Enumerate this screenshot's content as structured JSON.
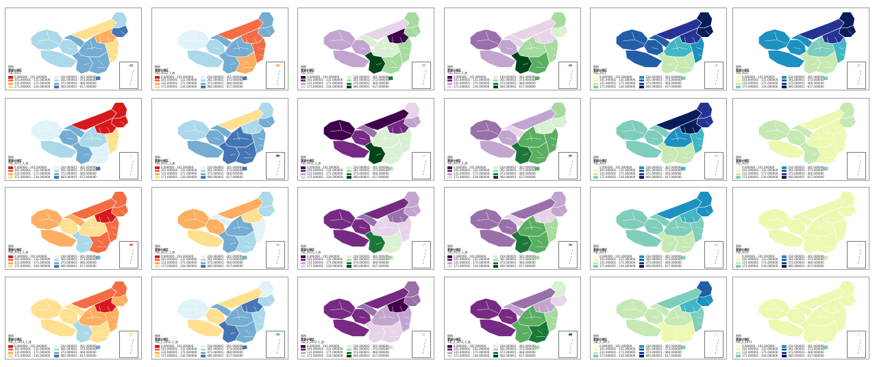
{
  "legend_heading": "图例",
  "legend_title": "客服分调区",
  "palettes": {
    "rdylbu": [
      "#d7191c",
      "#f46d43",
      "#fdae61",
      "#fee090",
      "#e0f3f8",
      "#abd9e9",
      "#74add1",
      "#4575b4"
    ],
    "prgn": [
      "#40004b",
      "#762a83",
      "#9970ab",
      "#c2a5cf",
      "#e7d4e8",
      "#d9f0d3",
      "#a6dba0",
      "#5aae61",
      "#1b7837",
      "#00441b"
    ],
    "ylgnbu": [
      "#ffffd9",
      "#edf8b1",
      "#c7e9b4",
      "#7fcdbb",
      "#41b6c4",
      "#1d91c0",
      "#225ea8",
      "#253494",
      "#081d58"
    ]
  },
  "panels": [
    {
      "id": "r1c1",
      "palette": "rdylbu",
      "subtitle": "YID_2011",
      "items": [
        "0.000000 - 101.000000",
        "101.000001 - 131.000000",
        "131.000001 - 171.000000",
        "171.000001 - 234.000000",
        "234.000001 - 301.000000",
        "301.000001 - 373.000000",
        "373.000001 - 460.000000",
        "460.000001 - 617.000000"
      ],
      "colors": {
        "xj": 5,
        "xz": 5,
        "qh": 5,
        "nm": 3,
        "gs": 6,
        "hlj": 5,
        "ne": 7,
        "n": 2,
        "c": 6,
        "e": 3,
        "s": 6,
        "sw": 6,
        "hn": 7
      }
    },
    {
      "id": "r1c2",
      "palette": "rdylbu",
      "subtitle": "YID_2012_1_底",
      "items": [
        "0.000000 - 101.000000",
        "101.000001 - 131.000000",
        "131.000001 - 171.000000",
        "171.000001 - 234.000000",
        "234.000001 - 301.000000",
        "301.000001 - 373.000000",
        "373.000001 - 460.000000",
        "460.000001 - 617.000000"
      ],
      "colors": {
        "xj": 4,
        "xz": 5,
        "qh": 5,
        "nm": 1,
        "gs": 6,
        "hlj": 6,
        "ne": 6,
        "n": 1,
        "c": 6,
        "e": 1,
        "s": 2,
        "sw": 6,
        "hn": 7
      }
    },
    {
      "id": "r1c3",
      "palette": "prgn",
      "subtitle": "YID_2011",
      "items": [
        "0.000000 - 101.000000",
        "101.000001 - 131.000000",
        "131.000001 - 171.000000",
        "171.000001 - 234.000000",
        "234.000001 - 301.000000",
        "301.000001 - 373.000000",
        "373.000001 - 460.000000",
        "460.000001 - 617.000000"
      ],
      "colors": {
        "xj": 3,
        "xz": 3,
        "qh": 3,
        "nm": 4,
        "gs": 5,
        "hlj": 6,
        "ne": 6,
        "n": 0,
        "c": 5,
        "e": 6,
        "s": 6,
        "sw": 9,
        "hn": 8
      }
    },
    {
      "id": "r1c4",
      "palette": "prgn",
      "subtitle": "YID_2012_1_底",
      "items": [
        "0.000000 - 101.000000",
        "101.000001 - 131.000000",
        "131.000001 - 171.000000",
        "171.000001 - 234.000000",
        "234.000001 - 301.000000",
        "301.000001 - 373.000000",
        "373.000001 - 460.000000",
        "460.000001 - 617.000000"
      ],
      "colors": {
        "xj": 2,
        "xz": 3,
        "qh": 3,
        "nm": 4,
        "gs": 4,
        "hlj": 6,
        "ne": 5,
        "n": 4,
        "c": 6,
        "e": 6,
        "s": 7,
        "sw": 9,
        "hn": 7
      }
    },
    {
      "id": "r1c5",
      "palette": "ylgnbu",
      "subtitle": "YID_2011",
      "items": [
        "0.000000 - 101.000000",
        "101.000001 - 131.000000",
        "131.000001 - 171.000000",
        "171.000001 - 234.000000",
        "234.000001 - 301.000000",
        "301.000001 - 373.000000",
        "373.000001 - 460.000000",
        "460.000001 - 617.000000"
      ],
      "colors": {
        "xj": 6,
        "xz": 6,
        "qh": 6,
        "nm": 7,
        "gs": 6,
        "hlj": 8,
        "ne": 8,
        "n": 7,
        "c": 4,
        "e": 5,
        "s": 2,
        "sw": 2,
        "hn": 3
      }
    },
    {
      "id": "r1c6",
      "palette": "ylgnbu",
      "subtitle": "YID_2011",
      "items": [
        "0.000000 - 101.000000",
        "101.000001 - 131.000000",
        "131.000001 - 171.000000",
        "171.000001 - 234.000000",
        "234.000001 - 301.000000",
        "301.000001 - 373.000000",
        "373.000001 - 460.000000",
        "460.000001 - 617.000000"
      ],
      "colors": {
        "xj": 5,
        "xz": 5,
        "qh": 5,
        "nm": 7,
        "gs": 5,
        "hlj": 8,
        "ne": 8,
        "n": 7,
        "c": 3,
        "e": 4,
        "s": 2,
        "sw": 2,
        "hn": 3
      }
    },
    {
      "id": "r2c1",
      "palette": "rdylbu",
      "subtitle": "YID_2011_1_底",
      "items": [
        "0.000000 - 101.000000",
        "101.000001 - 131.000000",
        "131.000001 - 171.000000",
        "171.000001 - 234.000000",
        "234.000001 - 301.000000",
        "301.000001 - 373.000000",
        "373.000001 - 460.000000",
        "460.000001 - 617.000000"
      ],
      "colors": {
        "xj": 4,
        "xz": 5,
        "qh": 6,
        "nm": 0,
        "gs": 6,
        "hlj": 0,
        "ne": 0,
        "n": 0,
        "c": 5,
        "e": 3,
        "s": 4,
        "sw": 6,
        "hn": 7
      }
    },
    {
      "id": "r2c2",
      "palette": "rdylbu",
      "subtitle": "YID_2011_1_底",
      "items": [
        "0.000000 - 101.000000",
        "101.000001 - 131.000000",
        "131.000001 - 171.000000",
        "171.000001 - 234.000000",
        "234.000001 - 301.000000",
        "301.000001 - 373.000000",
        "373.000001 - 460.000000",
        "460.000001 - 617.000000"
      ],
      "colors": {
        "xj": 5,
        "xz": 6,
        "qh": 6,
        "nm": 3,
        "gs": 6,
        "hlj": 5,
        "ne": 6,
        "n": 5,
        "c": 7,
        "e": 6,
        "s": 7,
        "sw": 7,
        "hn": 7
      }
    },
    {
      "id": "r2c3",
      "palette": "prgn",
      "subtitle": "YID_2011_1_底",
      "items": [
        "0.000000 - 101.000000",
        "101.000001 - 131.000000",
        "131.000001 - 171.000000",
        "171.000001 - 234.000000",
        "234.000001 - 301.000000",
        "301.000001 - 373.000000",
        "373.000001 - 460.000000",
        "460.000001 - 617.000000"
      ],
      "colors": {
        "xj": 0,
        "xz": 1,
        "qh": 1,
        "nm": 0,
        "gs": 2,
        "hlj": 4,
        "ne": 3,
        "n": 1,
        "c": 5,
        "e": 5,
        "s": 5,
        "sw": 9,
        "hn": 6
      }
    },
    {
      "id": "r2c4",
      "palette": "prgn",
      "subtitle": "YID_2011_1_底",
      "items": [
        "0.000000 - 101.000000",
        "101.000001 - 131.000000",
        "131.000001 - 171.000000",
        "171.000001 - 234.000000",
        "234.000001 - 301.000000",
        "301.000001 - 373.000000",
        "373.000001 - 460.000000",
        "460.000001 - 617.000000"
      ],
      "colors": {
        "xj": 2,
        "xz": 3,
        "qh": 3,
        "nm": 3,
        "gs": 4,
        "hlj": 6,
        "ne": 5,
        "n": 5,
        "c": 7,
        "e": 7,
        "s": 7,
        "sw": 8,
        "hn": 7
      }
    },
    {
      "id": "r2c5",
      "palette": "ylgnbu",
      "subtitle": "YID_2011",
      "items": [
        "0.000000 - 101.000000",
        "101.000001 - 131.000000",
        "131.000001 - 171.000000",
        "171.000001 - 234.000000",
        "234.000001 - 301.000000",
        "301.000001 - 373.000000",
        "373.000001 - 460.000000",
        "460.000001 - 617.000000"
      ],
      "colors": {
        "xj": 3,
        "xz": 3,
        "qh": 3,
        "nm": 8,
        "gs": 3,
        "hlj": 7,
        "ne": 7,
        "n": 8,
        "c": 5,
        "e": 4,
        "s": 2,
        "sw": 2,
        "hn": 4
      }
    },
    {
      "id": "r2c6",
      "palette": "ylgnbu",
      "subtitle": "YID_2011",
      "items": [
        "0.000000 - 101.000000",
        "101.000001 - 131.000000",
        "131.000001 - 171.000000",
        "171.000001 - 234.000000",
        "234.000001 - 301.000000",
        "301.000001 - 373.000000",
        "373.000001 - 460.000000",
        "460.000001 - 617.000000"
      ],
      "colors": {
        "xj": 2,
        "xz": 1,
        "qh": 2,
        "nm": 1,
        "gs": 2,
        "hlj": 2,
        "ne": 2,
        "n": 1,
        "c": 1,
        "e": 1,
        "s": 1,
        "sw": 2,
        "hn": 3
      }
    },
    {
      "id": "r3c1",
      "palette": "rdylbu",
      "subtitle": "YID_2011_1_底",
      "items": [
        "0.000000 - 101.000000",
        "101.000001 - 131.000000",
        "131.000001 - 171.000000",
        "171.000001 - 234.000000",
        "234.000001 - 301.000000",
        "301.000001 - 373.000000",
        "373.000001 - 460.000000",
        "460.000001 - 617.000000"
      ],
      "colors": {
        "xj": 2,
        "xz": 2,
        "qh": 3,
        "nm": 1,
        "gs": 2,
        "hlj": 1,
        "ne": 1,
        "n": 0,
        "c": 3,
        "e": 1,
        "s": 1,
        "sw": 5,
        "hn": 6
      }
    },
    {
      "id": "r3c2",
      "palette": "rdylbu",
      "subtitle": "YID_2011_1_底",
      "items": [
        "0.000000 - 101.000000",
        "101.000001 - 131.000000",
        "131.000001 - 171.000000",
        "171.000001 - 234.000000",
        "234.000001 - 301.000000",
        "301.000001 - 373.000000",
        "373.000001 - 460.000000",
        "460.000001 - 617.000000"
      ],
      "colors": {
        "xj": 2,
        "xz": 3,
        "qh": 2,
        "nm": 2,
        "gs": 4,
        "hlj": 5,
        "ne": 5,
        "n": 3,
        "c": 6,
        "e": 4,
        "s": 5,
        "sw": 6,
        "hn": 6
      }
    },
    {
      "id": "r3c3",
      "palette": "prgn",
      "subtitle": "YID_2011_1_底",
      "items": [
        "0.000000 - 101.000000",
        "101.000001 - 131.000000",
        "131.000001 - 171.000000",
        "171.000001 - 234.000000",
        "234.000001 - 301.000000",
        "301.000001 - 373.000000",
        "373.000001 - 460.000000",
        "460.000001 - 617.000000"
      ],
      "colors": {
        "xj": 1,
        "xz": 1,
        "qh": 1,
        "nm": 1,
        "gs": 2,
        "hlj": 3,
        "ne": 3,
        "n": 2,
        "c": 4,
        "e": 4,
        "s": 5,
        "sw": 8,
        "hn": 6
      }
    },
    {
      "id": "r3c4",
      "palette": "prgn",
      "subtitle": "YID_2011_1_底",
      "items": [
        "0.000000 - 101.000000",
        "101.000001 - 131.000000",
        "131.000001 - 171.000000",
        "171.000001 - 234.000000",
        "234.000001 - 301.000000",
        "301.000001 - 373.000000",
        "373.000001 - 460.000000",
        "460.000001 - 617.000000"
      ],
      "colors": {
        "xj": 2,
        "xz": 2,
        "qh": 2,
        "nm": 2,
        "gs": 4,
        "hlj": 3,
        "ne": 3,
        "n": 4,
        "c": 7,
        "e": 6,
        "s": 7,
        "sw": 8,
        "hn": 6
      }
    },
    {
      "id": "r3c5",
      "palette": "ylgnbu",
      "subtitle": "YID_2011",
      "items": [
        "0.000000 - 101.000000",
        "101.000001 - 131.000000",
        "131.000001 - 171.000000",
        "171.000001 - 234.000000",
        "234.000001 - 301.000000",
        "301.000001 - 373.000000",
        "373.000001 - 460.000000",
        "460.000001 - 617.000000"
      ],
      "colors": {
        "xj": 3,
        "xz": 3,
        "qh": 3,
        "nm": 5,
        "gs": 3,
        "hlj": 5,
        "ne": 5,
        "n": 4,
        "c": 3,
        "e": 3,
        "s": 2,
        "sw": 2,
        "hn": 3
      }
    },
    {
      "id": "r3c6",
      "palette": "ylgnbu",
      "subtitle": "YID_2011",
      "items": [
        "0.000000 - 101.000000",
        "101.000001 - 131.000000",
        "131.000001 - 171.000000",
        "171.000001 - 234.000000",
        "234.000001 - 301.000000",
        "301.000001 - 373.000000",
        "373.000001 - 460.000000",
        "460.000001 - 617.000000"
      ],
      "colors": {
        "xj": 1,
        "xz": 1,
        "qh": 1,
        "nm": 1,
        "gs": 1,
        "hlj": 1,
        "ne": 1,
        "n": 1,
        "c": 1,
        "e": 1,
        "s": 1,
        "sw": 1,
        "hn": 2
      }
    },
    {
      "id": "r4c1",
      "palette": "rdylbu",
      "subtitle": "YID_2_2012_1_底",
      "items": [
        "0.000000 - 101.000000",
        "101.000001 - 131.000000",
        "131.000001 - 171.000000",
        "171.000001 - 234.000000",
        "234.000001 - 301.000000",
        "301.000001 - 373.000000",
        "373.000001 - 460.000000",
        "460.000001 - 617.000000"
      ],
      "colors": {
        "xj": 3,
        "xz": 3,
        "qh": 3,
        "nm": 1,
        "gs": 3,
        "hlj": 1,
        "ne": 2,
        "n": 0,
        "c": 2,
        "e": 2,
        "s": 3,
        "sw": 5,
        "hn": 6
      }
    },
    {
      "id": "r4c2",
      "palette": "rdylbu",
      "subtitle": "YID_2_2012_1_底",
      "items": [
        "0.000000 - 101.000000",
        "101.000001 - 131.000000",
        "131.000001 - 171.000000",
        "171.000001 - 234.000000",
        "234.000001 - 301.000000",
        "301.000001 - 373.000000",
        "373.000001 - 460.000000",
        "460.000001 - 617.000000"
      ],
      "colors": {
        "xj": 4,
        "xz": 3,
        "qh": 3,
        "nm": 3,
        "gs": 6,
        "hlj": 4,
        "ne": 5,
        "n": 7,
        "c": 6,
        "e": 5,
        "s": 6,
        "sw": 7,
        "hn": 7
      }
    },
    {
      "id": "r4c3",
      "palette": "prgn",
      "subtitle": "YID_2_2012_1_底",
      "items": [
        "0.000000 - 101.000000",
        "101.000001 - 131.000000",
        "131.000001 - 171.000000",
        "171.000001 - 234.000000",
        "234.000001 - 301.000000",
        "301.000001 - 373.000000",
        "373.000001 - 460.000000",
        "460.000001 - 617.000000"
      ],
      "colors": {
        "xj": 1,
        "xz": 1,
        "qh": 1,
        "nm": 1,
        "gs": 2,
        "hlj": 2,
        "ne": 2,
        "n": 0,
        "c": 3,
        "e": 3,
        "s": 4,
        "sw": 4,
        "hn": 4
      }
    },
    {
      "id": "r4c4",
      "palette": "prgn",
      "subtitle": "YID_2_2012_1_底",
      "items": [
        "0.000000 - 101.000000",
        "101.000001 - 131.000000",
        "131.000001 - 171.000000",
        "171.000001 - 234.000000",
        "234.000001 - 301.000000",
        "301.000001 - 373.000000",
        "373.000001 - 460.000000",
        "460.000001 - 617.000000"
      ],
      "colors": {
        "xj": 1,
        "xz": 1,
        "qh": 1,
        "nm": 2,
        "gs": 3,
        "hlj": 5,
        "ne": 4,
        "n": 3,
        "c": 7,
        "e": 6,
        "s": 8,
        "sw": 7,
        "hn": 6
      }
    },
    {
      "id": "r4c5",
      "palette": "ylgnbu",
      "subtitle": "YID_2_2011",
      "items": [
        "0.000000 - 101.000000",
        "101.000001 - 131.000000",
        "131.000001 - 171.000000",
        "171.000001 - 234.000000",
        "234.000001 - 301.000000",
        "301.000001 - 373.000000",
        "373.000001 - 460.000000",
        "460.000001 - 617.000000"
      ],
      "colors": {
        "xj": 2,
        "xz": 2,
        "qh": 2,
        "nm": 3,
        "gs": 2,
        "hlj": 6,
        "ne": 5,
        "n": 4,
        "c": 2,
        "e": 3,
        "s": 1,
        "sw": 1,
        "hn": 3
      }
    },
    {
      "id": "r4c6",
      "palette": "ylgnbu",
      "subtitle": "YID_2_2011",
      "items": [
        "0.000000 - 101.000000",
        "101.000001 - 131.000000",
        "131.000001 - 171.000000",
        "171.000001 - 234.000000",
        "234.000001 - 301.000000",
        "301.000001 - 373.000000",
        "373.000001 - 460.000000",
        "460.000001 - 617.000000"
      ],
      "colors": {
        "xj": 1,
        "xz": 1,
        "qh": 1,
        "nm": 1,
        "gs": 1,
        "hlj": 1,
        "ne": 1,
        "n": 1,
        "c": 1,
        "e": 1,
        "s": 1,
        "sw": 1,
        "hn": 3
      }
    }
  ]
}
